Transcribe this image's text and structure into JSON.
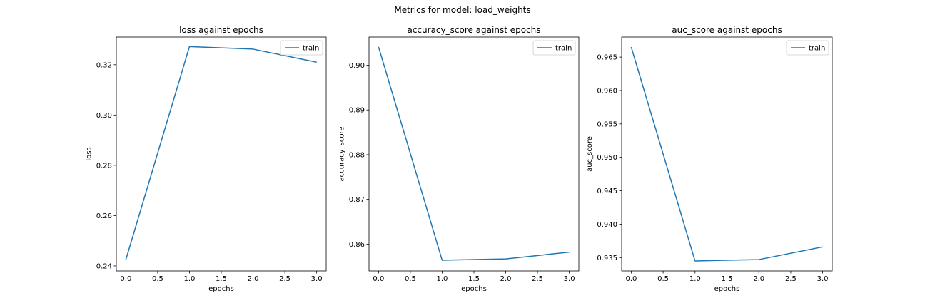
{
  "figure": {
    "suptitle": "Metrics for model: load_weights",
    "line_color": "#1f77b4"
  },
  "chart_data": [
    {
      "type": "line",
      "title": "loss against epochs",
      "xlabel": "epochs",
      "ylabel": "loss",
      "xlim": [
        -0.15,
        3.15
      ],
      "ylim": [
        0.238,
        0.331
      ],
      "xticks": [
        0.0,
        0.5,
        1.0,
        1.5,
        2.0,
        2.5,
        3.0
      ],
      "xtick_labels": [
        "0.0",
        "0.5",
        "1.0",
        "1.5",
        "2.0",
        "2.5",
        "3.0"
      ],
      "yticks": [
        0.24,
        0.26,
        0.28,
        0.3,
        0.32
      ],
      "ytick_labels": [
        "0.24",
        "0.26",
        "0.28",
        "0.30",
        "0.32"
      ],
      "legend": "top-right",
      "grid": false,
      "series": [
        {
          "name": "train",
          "x": [
            0,
            1,
            2,
            3
          ],
          "y": [
            0.2425,
            0.3272,
            0.3262,
            0.321
          ]
        }
      ]
    },
    {
      "type": "line",
      "title": "accuracy_score against epochs",
      "xlabel": "epochs",
      "ylabel": "accuracy_score",
      "xlim": [
        -0.15,
        3.15
      ],
      "ylim": [
        0.854,
        0.9063
      ],
      "xticks": [
        0.0,
        0.5,
        1.0,
        1.5,
        2.0,
        2.5,
        3.0
      ],
      "xtick_labels": [
        "0.0",
        "0.5",
        "1.0",
        "1.5",
        "2.0",
        "2.5",
        "3.0"
      ],
      "yticks": [
        0.86,
        0.87,
        0.88,
        0.89,
        0.9
      ],
      "ytick_labels": [
        "0.86",
        "0.87",
        "0.88",
        "0.89",
        "0.90"
      ],
      "legend": "top-right",
      "grid": false,
      "series": [
        {
          "name": "train",
          "x": [
            0,
            1,
            2,
            3
          ],
          "y": [
            0.9041,
            0.8564,
            0.8567,
            0.8582
          ]
        }
      ]
    },
    {
      "type": "line",
      "title": "auc_score against epochs",
      "xlabel": "epochs",
      "ylabel": "auc_score",
      "xlim": [
        -0.15,
        3.15
      ],
      "ylim": [
        0.933,
        0.968
      ],
      "xticks": [
        0.0,
        0.5,
        1.0,
        1.5,
        2.0,
        2.5,
        3.0
      ],
      "xtick_labels": [
        "0.0",
        "0.5",
        "1.0",
        "1.5",
        "2.0",
        "2.5",
        "3.0"
      ],
      "yticks": [
        0.935,
        0.94,
        0.945,
        0.95,
        0.955,
        0.96,
        0.965
      ],
      "ytick_labels": [
        "0.935",
        "0.940",
        "0.945",
        "0.950",
        "0.955",
        "0.960",
        "0.965"
      ],
      "legend": "top-right",
      "grid": false,
      "series": [
        {
          "name": "train",
          "x": [
            0,
            1,
            2,
            3
          ],
          "y": [
            0.9665,
            0.9345,
            0.9347,
            0.9366
          ]
        }
      ]
    }
  ]
}
